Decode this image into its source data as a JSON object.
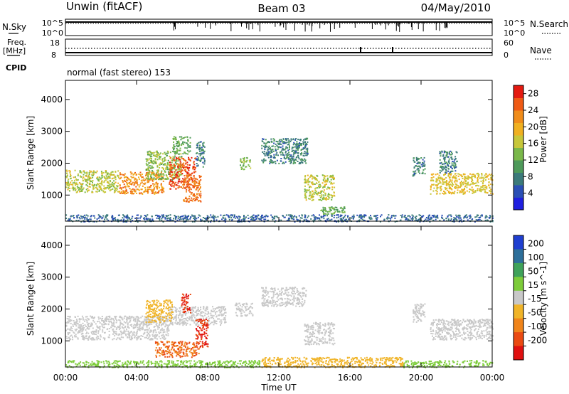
{
  "header": {
    "station": "Unwin (fitACF)",
    "beam": "Beam 03",
    "date": "04/May/2010"
  },
  "status": {
    "nsky_label": "N.Sky",
    "nsearch_label": "N.Search",
    "noise_ticks": [
      "10^5",
      "10^0"
    ],
    "freq_label": "Freq.",
    "freq_unit": "[MHz]",
    "freq_ticks": [
      "18",
      "8"
    ],
    "nave_label": "Nave",
    "nave_ticks": [
      "60",
      "0"
    ],
    "cpid_label": "CPID",
    "cpid_text": "normal (fast stereo) 153"
  },
  "chart_data": [
    {
      "type": "heatmap",
      "panel": "power",
      "ylabel": "Slant Range [km]",
      "xlabel": "Time UT",
      "xlim": [
        0,
        24
      ],
      "ylim": [
        180,
        4600
      ],
      "x_ticks": [
        "00:00",
        "04:00",
        "08:00",
        "12:00",
        "16:00",
        "20:00",
        "00:00"
      ],
      "x_tick_values": [
        0,
        4,
        8,
        12,
        16,
        20,
        24
      ],
      "y_ticks": [
        1000,
        2000,
        3000,
        4000
      ],
      "colorbar": {
        "label": "Power [dB]",
        "tick_values": [
          4,
          8,
          12,
          16,
          20,
          24,
          28
        ],
        "range": [
          0,
          30
        ],
        "colors": [
          "#1f1fe0",
          "#2a4fb5",
          "#3b7a7a",
          "#4e9a5a",
          "#7ab84a",
          "#c7c73a",
          "#f0b020",
          "#f08c1a",
          "#ef5a14",
          "#e41a10"
        ]
      },
      "regions": [
        {
          "t0": 0.0,
          "t1": 3.0,
          "r0": 1100,
          "r1": 1800,
          "level": 16
        },
        {
          "t0": 3.0,
          "t1": 5.5,
          "r0": 1050,
          "r1": 1750,
          "level": 22
        },
        {
          "t0": 4.5,
          "t1": 6.5,
          "r0": 1500,
          "r1": 2400,
          "level": 14
        },
        {
          "t0": 5.8,
          "t1": 7.3,
          "r0": 1200,
          "r1": 2200,
          "level": 26
        },
        {
          "t0": 6.0,
          "t1": 7.0,
          "r0": 2300,
          "r1": 2850,
          "level": 12
        },
        {
          "t0": 6.6,
          "t1": 7.6,
          "r0": 800,
          "r1": 1650,
          "level": 24
        },
        {
          "t0": 7.3,
          "t1": 7.8,
          "r0": 1900,
          "r1": 2700,
          "level": 8
        },
        {
          "t0": 9.8,
          "t1": 10.4,
          "r0": 1800,
          "r1": 2200,
          "level": 14
        },
        {
          "t0": 11.0,
          "t1": 13.6,
          "r0": 2000,
          "r1": 2800,
          "level": 8
        },
        {
          "t0": 13.4,
          "t1": 15.1,
          "r0": 850,
          "r1": 1650,
          "level": 16
        },
        {
          "t0": 14.3,
          "t1": 15.7,
          "r0": 400,
          "r1": 650,
          "level": 12
        },
        {
          "t0": 19.5,
          "t1": 20.2,
          "r0": 1600,
          "r1": 2200,
          "level": 8
        },
        {
          "t0": 20.5,
          "t1": 24.0,
          "r0": 1050,
          "r1": 1700,
          "level": 18
        },
        {
          "t0": 21.0,
          "t1": 22.0,
          "r0": 1700,
          "r1": 2400,
          "level": 8
        },
        {
          "t0": 0.0,
          "t1": 24.0,
          "r0": 180,
          "r1": 400,
          "level": 6
        }
      ]
    },
    {
      "type": "heatmap",
      "panel": "velocity",
      "ylabel": "Slant Range [km]",
      "xlabel": "Time UT",
      "xlim": [
        0,
        24
      ],
      "ylim": [
        180,
        4600
      ],
      "x_ticks": [
        "00:00",
        "04:00",
        "08:00",
        "12:00",
        "16:00",
        "20:00",
        "00:00"
      ],
      "x_tick_values": [
        0,
        4,
        8,
        12,
        16,
        20,
        24
      ],
      "y_ticks": [
        1000,
        2000,
        3000,
        4000
      ],
      "colorbar": {
        "label": "Velocity [m s^-1]",
        "tick_labels": [
          "200",
          "100",
          "50",
          "15",
          "-15",
          "-50",
          "-100",
          "-200"
        ],
        "colors": [
          "#1f3fd0",
          "#2d6f9a",
          "#3fa25a",
          "#7dcc3a",
          "#c8c8c8",
          "#f0b428",
          "#f0841a",
          "#ea4a12",
          "#e01010"
        ]
      },
      "regions": [
        {
          "t0": 0.0,
          "t1": 5.8,
          "r0": 1050,
          "r1": 1800,
          "level": 0
        },
        {
          "t0": 5.8,
          "t1": 9.0,
          "r0": 1500,
          "r1": 2100,
          "level": 0
        },
        {
          "t0": 4.5,
          "t1": 6.0,
          "r0": 1600,
          "r1": 2300,
          "level": -30
        },
        {
          "t0": 6.5,
          "t1": 7.0,
          "r0": 1900,
          "r1": 2500,
          "level": -200
        },
        {
          "t0": 7.3,
          "t1": 8.0,
          "r0": 800,
          "r1": 1700,
          "level": -200
        },
        {
          "t0": 5.0,
          "t1": 7.5,
          "r0": 500,
          "r1": 1000,
          "level": -100
        },
        {
          "t0": 9.5,
          "t1": 10.5,
          "r0": 1800,
          "r1": 2200,
          "level": 0
        },
        {
          "t0": 11.0,
          "t1": 13.5,
          "r0": 2100,
          "r1": 2700,
          "level": 0
        },
        {
          "t0": 13.4,
          "t1": 15.1,
          "r0": 900,
          "r1": 1600,
          "level": 0
        },
        {
          "t0": 19.5,
          "t1": 20.2,
          "r0": 1600,
          "r1": 2200,
          "level": 0
        },
        {
          "t0": 20.5,
          "t1": 24.0,
          "r0": 1050,
          "r1": 1700,
          "level": 0
        },
        {
          "t0": 0.0,
          "t1": 11.0,
          "r0": 180,
          "r1": 400,
          "level": 30
        },
        {
          "t0": 11.0,
          "t1": 19.0,
          "r0": 180,
          "r1": 500,
          "level": -30
        },
        {
          "t0": 19.0,
          "t1": 24.0,
          "r0": 180,
          "r1": 400,
          "level": 30
        }
      ]
    }
  ]
}
